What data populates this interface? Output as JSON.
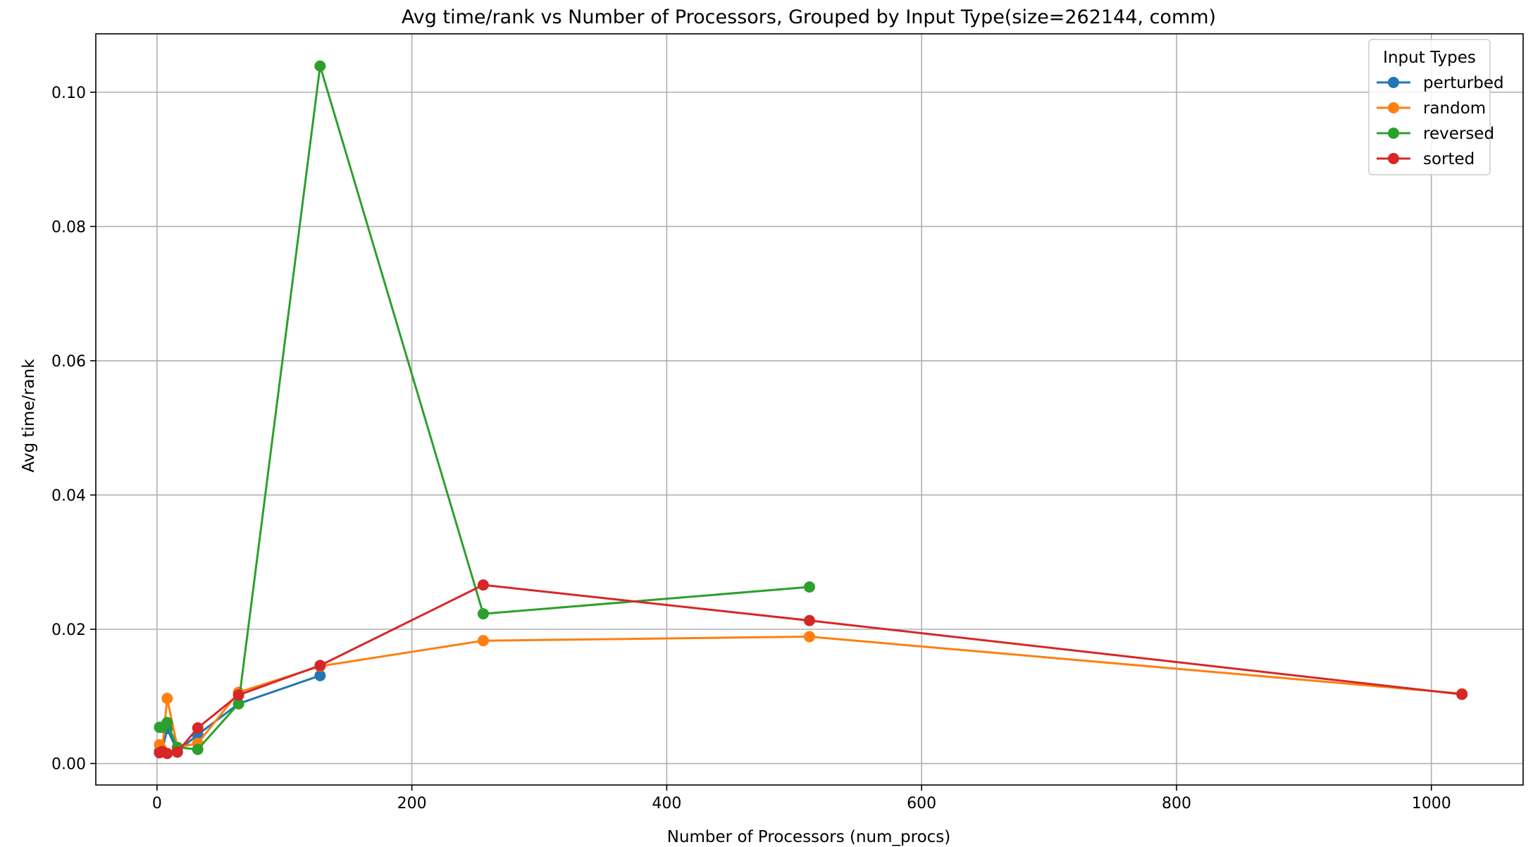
{
  "chart_data": {
    "type": "line",
    "title": "Avg time/rank vs Number of Processors, Grouped by Input Type(size=262144, comm)",
    "xlabel": "Number of Processors (num_procs)",
    "ylabel": "Avg time/rank",
    "xlim": [
      -48,
      1072
    ],
    "ylim": [
      -0.0032,
      0.1087
    ],
    "x_ticks": [
      0,
      200,
      400,
      600,
      800,
      1000
    ],
    "x_tick_labels": [
      "0",
      "200",
      "400",
      "600",
      "800",
      "1000"
    ],
    "y_ticks": [
      0.0,
      0.02,
      0.04,
      0.06,
      0.08,
      0.1
    ],
    "y_tick_labels": [
      "0.00",
      "0.02",
      "0.04",
      "0.06",
      "0.08",
      "0.10"
    ],
    "grid": true,
    "legend": {
      "title": "Input Types",
      "placement": "top-right"
    },
    "series": [
      {
        "name": "perturbed",
        "color": "#1f77b4",
        "x": [
          2,
          4,
          8,
          16,
          32,
          64,
          128
        ],
        "y": [
          0.0018,
          0.0018,
          0.0052,
          0.0018,
          0.0043,
          0.0089,
          0.0131
        ]
      },
      {
        "name": "random",
        "color": "#ff7f0e",
        "x": [
          2,
          4,
          8,
          16,
          32,
          64,
          128,
          256,
          512,
          1024
        ],
        "y": [
          0.0028,
          0.002,
          0.0097,
          0.0024,
          0.003,
          0.0106,
          0.0145,
          0.0183,
          0.0189,
          0.0104
        ]
      },
      {
        "name": "reversed",
        "color": "#2ca02c",
        "x": [
          2,
          4,
          8,
          16,
          32,
          64,
          128,
          256,
          512
        ],
        "y": [
          0.0054,
          0.0054,
          0.0061,
          0.0024,
          0.0021,
          0.0089,
          0.1039,
          0.0223,
          0.0263
        ]
      },
      {
        "name": "sorted",
        "color": "#d62728",
        "x": [
          2,
          4,
          8,
          16,
          32,
          64,
          128,
          256,
          512,
          1024
        ],
        "y": [
          0.0016,
          0.0018,
          0.0015,
          0.0017,
          0.0053,
          0.0102,
          0.0146,
          0.0266,
          0.0213,
          0.0103
        ]
      }
    ]
  }
}
